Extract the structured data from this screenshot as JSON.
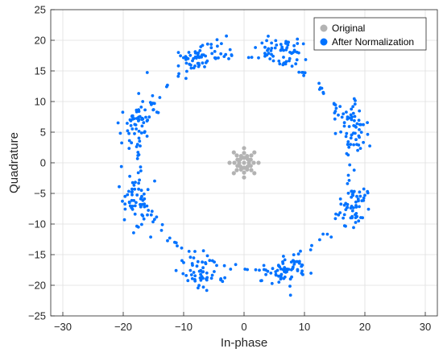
{
  "chart_data": {
    "type": "scatter",
    "title": "",
    "xlabel": "In-phase",
    "ylabel": "Quadrature",
    "xlim": [
      -32,
      32
    ],
    "ylim": [
      -25,
      25
    ],
    "xticks": [
      -30,
      -20,
      -10,
      0,
      10,
      20,
      30
    ],
    "yticks": [
      -25,
      -20,
      -15,
      -10,
      -5,
      0,
      5,
      10,
      15,
      20,
      25
    ],
    "xtick_labels": [
      "−30",
      "−20",
      "−10",
      "0",
      "10",
      "20",
      "30"
    ],
    "ytick_labels": [
      "−25",
      "−20",
      "−15",
      "−10",
      "−5",
      "0",
      "5",
      "10",
      "15",
      "20",
      "25"
    ],
    "grid": true,
    "legend_position": "top-right",
    "series": [
      {
        "name": "Original",
        "color": "#b3b3b3",
        "points": [
          [
            0,
            0
          ],
          [
            0.6,
            0.6
          ],
          [
            1.2,
            1.2
          ],
          [
            1.7,
            1.7
          ],
          [
            -0.6,
            0.6
          ],
          [
            -1.2,
            1.2
          ],
          [
            -1.7,
            1.7
          ],
          [
            0.6,
            -0.6
          ],
          [
            1.2,
            -1.2
          ],
          [
            1.7,
            -1.7
          ],
          [
            -0.6,
            -0.6
          ],
          [
            -1.2,
            -1.2
          ],
          [
            -1.7,
            -1.7
          ],
          [
            0.8,
            0
          ],
          [
            1.6,
            0
          ],
          [
            2.4,
            0
          ],
          [
            -0.8,
            0
          ],
          [
            -1.6,
            0
          ],
          [
            -2.4,
            0
          ],
          [
            0,
            0.8
          ],
          [
            0,
            1.6
          ],
          [
            0,
            2.4
          ],
          [
            0,
            -0.8
          ],
          [
            0,
            -1.6
          ],
          [
            0,
            -2.4
          ],
          [
            0.5,
            1.1
          ],
          [
            -0.5,
            1.1
          ],
          [
            0.5,
            -1.1
          ],
          [
            -0.5,
            -1.1
          ],
          [
            1.1,
            0.5
          ],
          [
            -1.1,
            0.5
          ],
          [
            1.1,
            -0.5
          ],
          [
            -1.1,
            -0.5
          ]
        ]
      },
      {
        "name": "After Normalization",
        "color": "#0072ff",
        "clusters": [
          {
            "angle_deg": 20,
            "count": 55
          },
          {
            "angle_deg": 70,
            "count": 55
          },
          {
            "angle_deg": 112,
            "count": 55
          },
          {
            "angle_deg": 158,
            "count": 55
          },
          {
            "angle_deg": 200,
            "count": 55
          },
          {
            "angle_deg": 248,
            "count": 55
          },
          {
            "angle_deg": 292,
            "count": 55
          },
          {
            "angle_deg": 338,
            "count": 55
          }
        ],
        "cluster_radius": 19,
        "cluster_spread": 1.2,
        "ring_radius": 17.6,
        "ring_points": 110
      }
    ]
  }
}
